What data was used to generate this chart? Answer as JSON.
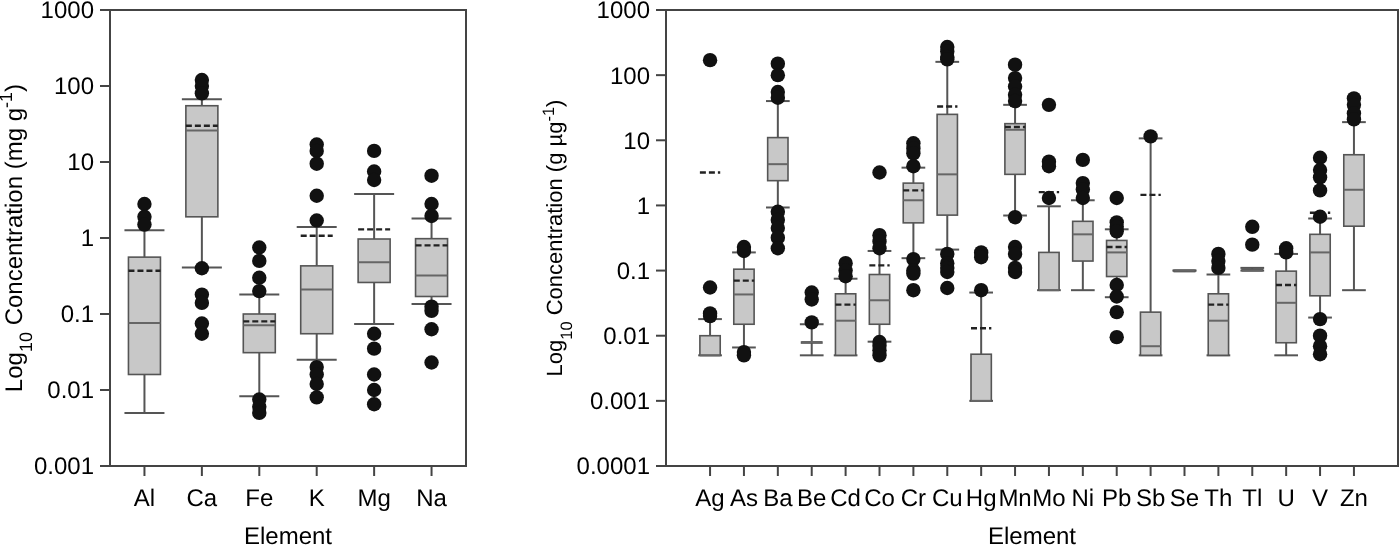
{
  "chart_data": [
    {
      "type": "box",
      "xlabel": "Element",
      "ylabel": "Log$_{10}$ Concentration (mg g$^{-1}$)",
      "log": true,
      "ylim": [
        0.001,
        1000
      ],
      "yticks": [
        0.001,
        0.01,
        0.1,
        1,
        10,
        100,
        1000
      ],
      "categories": [
        "Al",
        "Ca",
        "Fe",
        "K",
        "Mg",
        "Na"
      ],
      "boxes": [
        {
          "low": 0.005,
          "q1": 0.016,
          "median": 0.076,
          "q3": 0.56,
          "high": 1.26,
          "mean": 0.37,
          "outliers": [
            2.8,
            1.9,
            1.5
          ]
        },
        {
          "low": 0.41,
          "q1": 1.9,
          "median": 26,
          "q3": 55,
          "high": 67,
          "mean": 30,
          "outliers": [
            120,
            100,
            80,
            0.4,
            0.18,
            0.14,
            0.075,
            0.055
          ]
        },
        {
          "low": 0.0083,
          "q1": 0.031,
          "median": 0.071,
          "q3": 0.1,
          "high": 0.18,
          "mean": 0.08,
          "outliers": [
            0.75,
            0.5,
            0.3,
            0.2,
            0.0075,
            0.006,
            0.005
          ]
        },
        {
          "low": 0.025,
          "q1": 0.055,
          "median": 0.21,
          "q3": 0.43,
          "high": 1.4,
          "mean": 1.07,
          "outliers": [
            17,
            14,
            9.5,
            3.6,
            1.7,
            0.02,
            0.016,
            0.012,
            0.008
          ]
        },
        {
          "low": 0.074,
          "q1": 0.26,
          "median": 0.48,
          "q3": 0.97,
          "high": 3.8,
          "mean": 1.3,
          "outliers": [
            14,
            7.5,
            5.8,
            0.055,
            0.035,
            0.016,
            0.01,
            0.0065
          ]
        },
        {
          "low": 0.135,
          "q1": 0.17,
          "median": 0.32,
          "q3": 0.98,
          "high": 1.8,
          "mean": 0.8,
          "outliers": [
            6.6,
            2.8,
            1.95,
            0.125,
            0.11,
            0.063,
            0.023
          ]
        }
      ]
    },
    {
      "type": "box",
      "xlabel": "Element",
      "ylabel": "Log$_{10}$ Concentration (g µg$^{-1}$)",
      "log": true,
      "ylim": [
        0.0001,
        1000
      ],
      "yticks": [
        0.0001,
        0.001,
        0.01,
        0.1,
        1,
        10,
        100,
        1000
      ],
      "categories": [
        "Ag",
        "As",
        "Ba",
        "Be",
        "Cd",
        "Co",
        "Cr",
        "Cu",
        "Hg",
        "Mn",
        "Mo",
        "Ni",
        "Pb",
        "Sb",
        "Se",
        "Th",
        "Tl",
        "U",
        "V",
        "Zn"
      ],
      "boxes": [
        {
          "low": 0.005,
          "q1": 0.005,
          "median": 0.005,
          "q3": 0.01,
          "high": 0.018,
          "mean": 3.2,
          "outliers": [
            170,
            0.055,
            0.022,
            0.02
          ]
        },
        {
          "low": 0.0066,
          "q1": 0.015,
          "median": 0.043,
          "q3": 0.105,
          "high": 0.19,
          "mean": 0.07,
          "outliers": [
            0.23,
            0.2,
            0.0056,
            0.005
          ]
        },
        {
          "low": 0.93,
          "q1": 2.4,
          "median": 4.3,
          "q3": 11,
          "high": 40,
          "outliers": [
            150,
            100,
            55,
            45,
            0.8,
            0.6,
            0.45,
            0.32,
            0.22
          ]
        },
        {
          "low": 0.005,
          "q1": 0.008,
          "median": 0.008,
          "q3": 0.008,
          "high": 0.015,
          "outliers": [
            0.046,
            0.036,
            0.016
          ]
        },
        {
          "low": 0.005,
          "q1": 0.005,
          "median": 0.017,
          "q3": 0.044,
          "high": 0.075,
          "mean": 0.03,
          "outliers": [
            0.13,
            0.1,
            0.082
          ]
        },
        {
          "low": 0.0081,
          "q1": 0.015,
          "median": 0.035,
          "q3": 0.087,
          "high": 0.2,
          "mean": 0.12,
          "outliers": [
            3.2,
            0.35,
            0.28,
            0.22,
            0.008,
            0.007,
            0.006,
            0.005
          ]
        },
        {
          "low": 0.155,
          "q1": 0.54,
          "median": 1.2,
          "q3": 2.2,
          "high": 3.8,
          "mean": 1.7,
          "outliers": [
            9,
            7.5,
            6.3,
            4,
            0.15,
            0.1,
            0.09,
            0.05
          ]
        },
        {
          "low": 0.21,
          "q1": 0.71,
          "median": 3,
          "q3": 25,
          "high": 160,
          "mean": 33,
          "outliers": [
            270,
            230,
            190,
            175,
            0.18,
            0.13,
            0.11,
            0.095,
            0.054
          ]
        },
        {
          "low": 0.001,
          "q1": 0.001,
          "median": 0.001,
          "q3": 0.0052,
          "high": 0.046,
          "mean": 0.013,
          "outliers": [
            0.19,
            0.16,
            0.05
          ]
        },
        {
          "low": 0.7,
          "q1": 3,
          "median": 14.5,
          "q3": 18,
          "high": 35,
          "mean": 16,
          "outliers": [
            145,
            90,
            67,
            50,
            40,
            0.66,
            0.23,
            0.18,
            0.11,
            0.095
          ]
        },
        {
          "low": 0.05,
          "q1": 0.05,
          "median": 0.05,
          "q3": 0.19,
          "high": 0.97,
          "mean": 1.6,
          "outliers": [
            35,
            4.7,
            4,
            1.3
          ]
        },
        {
          "low": 0.05,
          "q1": 0.14,
          "median": 0.36,
          "q3": 0.57,
          "high": 1.2,
          "outliers": [
            5,
            2.2,
            1.75,
            1.3
          ]
        },
        {
          "low": 0.039,
          "q1": 0.081,
          "median": 0.19,
          "q3": 0.29,
          "high": 0.43,
          "mean": 0.23,
          "outliers": [
            1.3,
            0.55,
            0.47,
            0.4,
            0.06,
            0.04,
            0.023,
            0.0095
          ]
        },
        {
          "low": 0.005,
          "q1": 0.005,
          "median": 0.0069,
          "q3": 0.023,
          "high": 10.7,
          "mean": 1.45,
          "outliers": [
            11.5
          ]
        },
        {
          "low": 0.1,
          "q1": 0.1,
          "median": 0.1,
          "q3": 0.1,
          "high": 0.1
        },
        {
          "low": 0.005,
          "q1": 0.005,
          "median": 0.017,
          "q3": 0.044,
          "high": 0.087,
          "mean": 0.03,
          "outliers": [
            0.18,
            0.14,
            0.11
          ]
        },
        {
          "low": 0.1,
          "q1": 0.1,
          "median": 0.1,
          "q3": 0.105,
          "high": 0.11,
          "outliers": [
            0.47,
            0.25
          ]
        },
        {
          "low": 0.005,
          "q1": 0.0078,
          "median": 0.032,
          "q3": 0.098,
          "high": 0.18,
          "mean": 0.06,
          "outliers": [
            0.22,
            0.19
          ]
        },
        {
          "low": 0.019,
          "q1": 0.041,
          "median": 0.19,
          "q3": 0.36,
          "high": 0.63,
          "mean": 0.77,
          "outliers": [
            5.4,
            3.5,
            2.7,
            1.7,
            0.67,
            0.018,
            0.01,
            0.0069,
            0.0052
          ]
        },
        {
          "low": 0.05,
          "q1": 0.48,
          "median": 1.74,
          "q3": 6,
          "high": 19,
          "outliers": [
            44,
            35,
            26,
            21
          ]
        }
      ]
    }
  ]
}
